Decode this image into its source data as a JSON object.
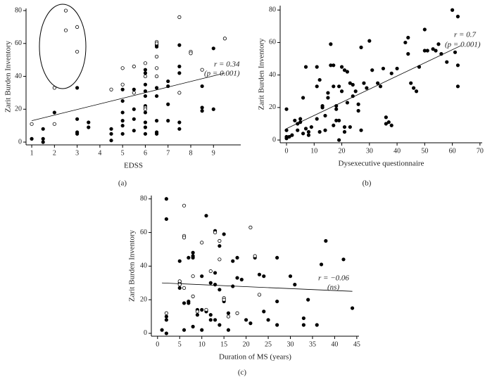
{
  "chart_data": [
    {
      "type": "scatter",
      "label": "(a)",
      "x_label": "EDSS",
      "y_label": "Zarit Burden Inventory",
      "xlim": [
        0.75,
        10.2
      ],
      "ylim": [
        -1.7,
        81.3
      ],
      "xticks": [
        1,
        2,
        3,
        4,
        5,
        6,
        7,
        8,
        9
      ],
      "yticks": [
        0,
        20,
        40,
        60,
        80
      ],
      "series": [
        {
          "marker": "filled",
          "color": "#000000",
          "x": [
            1,
            1.5,
            1.5,
            1.5,
            2,
            3,
            3,
            3,
            3,
            3.5,
            3.5,
            4.5,
            4.5,
            4.5,
            5,
            5,
            5,
            5,
            5,
            5,
            5.5,
            5.5,
            5.5,
            5.5,
            6,
            6,
            6,
            6,
            6,
            6,
            6,
            6,
            6,
            6,
            6.5,
            6.5,
            6.5,
            6.5,
            6.5,
            6.5,
            6.5,
            7,
            7,
            7,
            7,
            7.5,
            7.5,
            7.5,
            7.5,
            7.5,
            8.5,
            8.5,
            8.5,
            9,
            9
          ],
          "values": [
            2,
            8,
            2,
            0,
            18,
            33,
            14,
            6,
            5,
            12,
            9,
            8,
            5,
            1,
            32,
            25,
            18,
            13,
            10,
            5,
            32,
            20,
            14,
            7,
            44,
            42,
            35,
            31,
            28,
            22,
            18,
            12,
            9,
            5,
            59,
            58,
            33,
            28,
            13,
            6,
            5,
            37,
            34,
            23,
            13,
            59,
            46,
            42,
            12,
            8,
            34,
            21,
            19,
            57,
            20
          ]
        },
        {
          "marker": "open",
          "color": "#000000",
          "x": [
            1,
            2,
            2,
            2.5,
            2.5,
            3,
            3,
            4.5,
            5,
            5,
            5.5,
            5.5,
            6,
            6,
            6,
            6,
            6.5,
            6.5,
            6.5,
            6.5,
            6.5,
            7.5,
            7.5,
            8,
            8,
            9.5,
            8.5
          ],
          "values": [
            11,
            33,
            11,
            80,
            68,
            70,
            55,
            32,
            45,
            35,
            46,
            30,
            48,
            40,
            21,
            20,
            61,
            52,
            45,
            40,
            60,
            76,
            30,
            55,
            54,
            63,
            44
          ]
        }
      ],
      "fit": {
        "x": [
          1,
          9.5
        ],
        "values": [
          13,
          42
        ]
      },
      "annotations": [
        "r = 0.34",
        "(p = 0.001)"
      ]
    },
    {
      "type": "scatter",
      "label": "(b)",
      "x_label": "Dysexecutive questionnaire",
      "y_label": "Zarit Burden Inventory",
      "xlim": [
        -2.3,
        70.8
      ],
      "ylim": [
        -1.7,
        82.7
      ],
      "xticks": [
        0,
        10,
        20,
        30,
        40,
        50,
        60,
        70
      ],
      "yticks": [
        0,
        20,
        40,
        60,
        80
      ],
      "series": [
        {
          "marker": "filled",
          "color": "#000000",
          "x": [
            0,
            0,
            0,
            0,
            1,
            2,
            3,
            4,
            4,
            5,
            5,
            6,
            6,
            7,
            7,
            8,
            8,
            9,
            11,
            11,
            11,
            12,
            12,
            13,
            13,
            14,
            14,
            15,
            15,
            16,
            16,
            17,
            17,
            17,
            18,
            18,
            18,
            19,
            19,
            19,
            20,
            20,
            21,
            21,
            21,
            22,
            22,
            23,
            23,
            24,
            24,
            25,
            26,
            26,
            27,
            27,
            28,
            29,
            30,
            31,
            33,
            34,
            35,
            36,
            36,
            37,
            38,
            38,
            40,
            43,
            44,
            44,
            45,
            46,
            47,
            48,
            50,
            50,
            51,
            53,
            54,
            55,
            56,
            58,
            60,
            62,
            62,
            61,
            62
          ],
          "values": [
            19,
            6,
            2,
            1,
            2,
            3,
            12,
            10,
            6,
            13,
            11,
            4,
            26,
            45,
            7,
            3,
            5,
            8,
            45,
            33,
            13,
            5,
            37,
            21,
            20,
            15,
            6,
            26,
            29,
            46,
            59,
            46,
            33,
            9,
            21,
            19,
            12,
            33,
            12,
            0,
            45,
            30,
            43,
            8,
            5,
            42,
            23,
            35,
            8,
            34,
            27,
            30,
            22,
            18,
            57,
            6,
            35,
            32,
            61,
            43,
            35,
            33,
            44,
            14,
            10,
            11,
            41,
            9,
            44,
            60,
            63,
            53,
            35,
            32,
            30,
            45,
            68,
            55,
            55,
            56,
            55,
            59,
            53,
            48,
            80,
            76,
            46,
            54,
            33
          ]
        }
      ],
      "fit": {
        "x": [
          0,
          63
        ],
        "values": [
          7,
          58
        ]
      },
      "annotations": [
        "r = 0.7",
        "(p = 0.001)"
      ]
    },
    {
      "type": "scatter",
      "label": "(c)",
      "x_label": "Duration of MS (years)",
      "y_label": "Zarit Burden Inventory",
      "xlim": [
        -1.4,
        45.5
      ],
      "ylim": [
        -1.7,
        82
      ],
      "xticks": [
        0,
        5,
        10,
        15,
        20,
        25,
        30,
        35,
        40,
        45
      ],
      "yticks": [
        0,
        20,
        40,
        60,
        80
      ],
      "series": [
        {
          "marker": "filled",
          "color": "#000000",
          "x": [
            1,
            2,
            2,
            2,
            2,
            2,
            5,
            5,
            5,
            6,
            6,
            7,
            7,
            7,
            8,
            8,
            8,
            8,
            9,
            9,
            10,
            10,
            10,
            11,
            11,
            12,
            12,
            12,
            13,
            13,
            13,
            13,
            14,
            14,
            14,
            15,
            15,
            16,
            16,
            17,
            17,
            18,
            18,
            19,
            20,
            21,
            22,
            23,
            24,
            24,
            25,
            27,
            27,
            27,
            30,
            31,
            33,
            33,
            34,
            36,
            37,
            38,
            42,
            44
          ],
          "values": [
            2,
            80,
            68,
            10,
            8,
            0,
            30,
            27,
            43,
            2,
            18,
            19,
            45,
            18,
            48,
            46,
            45,
            4,
            14,
            11,
            34,
            14,
            2,
            70,
            13,
            30,
            11,
            8,
            61,
            36,
            29,
            8,
            52,
            26,
            5,
            59,
            19,
            12,
            2,
            43,
            28,
            33,
            45,
            32,
            8,
            6,
            45,
            35,
            13,
            34,
            8,
            45,
            19,
            5,
            34,
            29,
            9,
            5,
            20,
            5,
            41,
            55,
            44,
            15
          ]
        },
        {
          "marker": "open",
          "color": "#000000",
          "x": [
            2,
            5,
            5,
            6,
            6,
            6,
            6,
            8,
            8,
            9,
            10,
            11,
            12,
            13,
            14,
            14,
            15,
            15,
            16,
            18,
            21,
            22,
            23
          ],
          "values": [
            12,
            31,
            29,
            76,
            58,
            57,
            27,
            34,
            22,
            13,
            54,
            14,
            37,
            60,
            55,
            44,
            21,
            20,
            10,
            12,
            63,
            46,
            23
          ]
        }
      ],
      "fit": {
        "x": [
          1,
          44
        ],
        "values": [
          30,
          25
        ]
      },
      "annotations": [
        "r = −0.06",
        "(ns)"
      ]
    }
  ]
}
